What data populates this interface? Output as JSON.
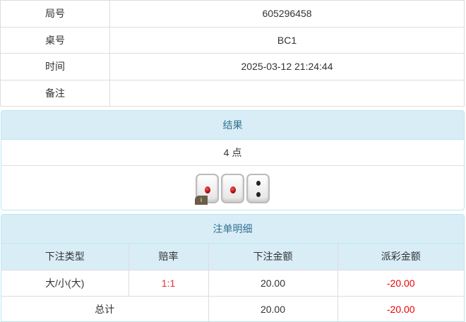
{
  "info": [
    {
      "label": "局号",
      "value": "605296458"
    },
    {
      "label": "桌号",
      "value": "BC1"
    },
    {
      "label": "时间",
      "value": "2025-03-12 21:24:44"
    },
    {
      "label": "备注",
      "value": ""
    }
  ],
  "result": {
    "title": "结果",
    "points": "4 点",
    "dice": [
      1,
      1,
      2
    ],
    "info_badge": "i"
  },
  "bets": {
    "title": "注单明细",
    "headers": [
      "下注类型",
      "赔率",
      "下注金额",
      "派彩金额"
    ],
    "rows": [
      {
        "type": "大/小(大)",
        "odds": "1:1",
        "amount": "20.00",
        "payout": "-20.00"
      }
    ],
    "total": {
      "label": "总计",
      "amount": "20.00",
      "payout": "-20.00"
    }
  },
  "colors": {
    "header_bg": "#d9edf7",
    "header_text": "#31708f",
    "negative": "#ee0000",
    "odds": "#e03030"
  }
}
